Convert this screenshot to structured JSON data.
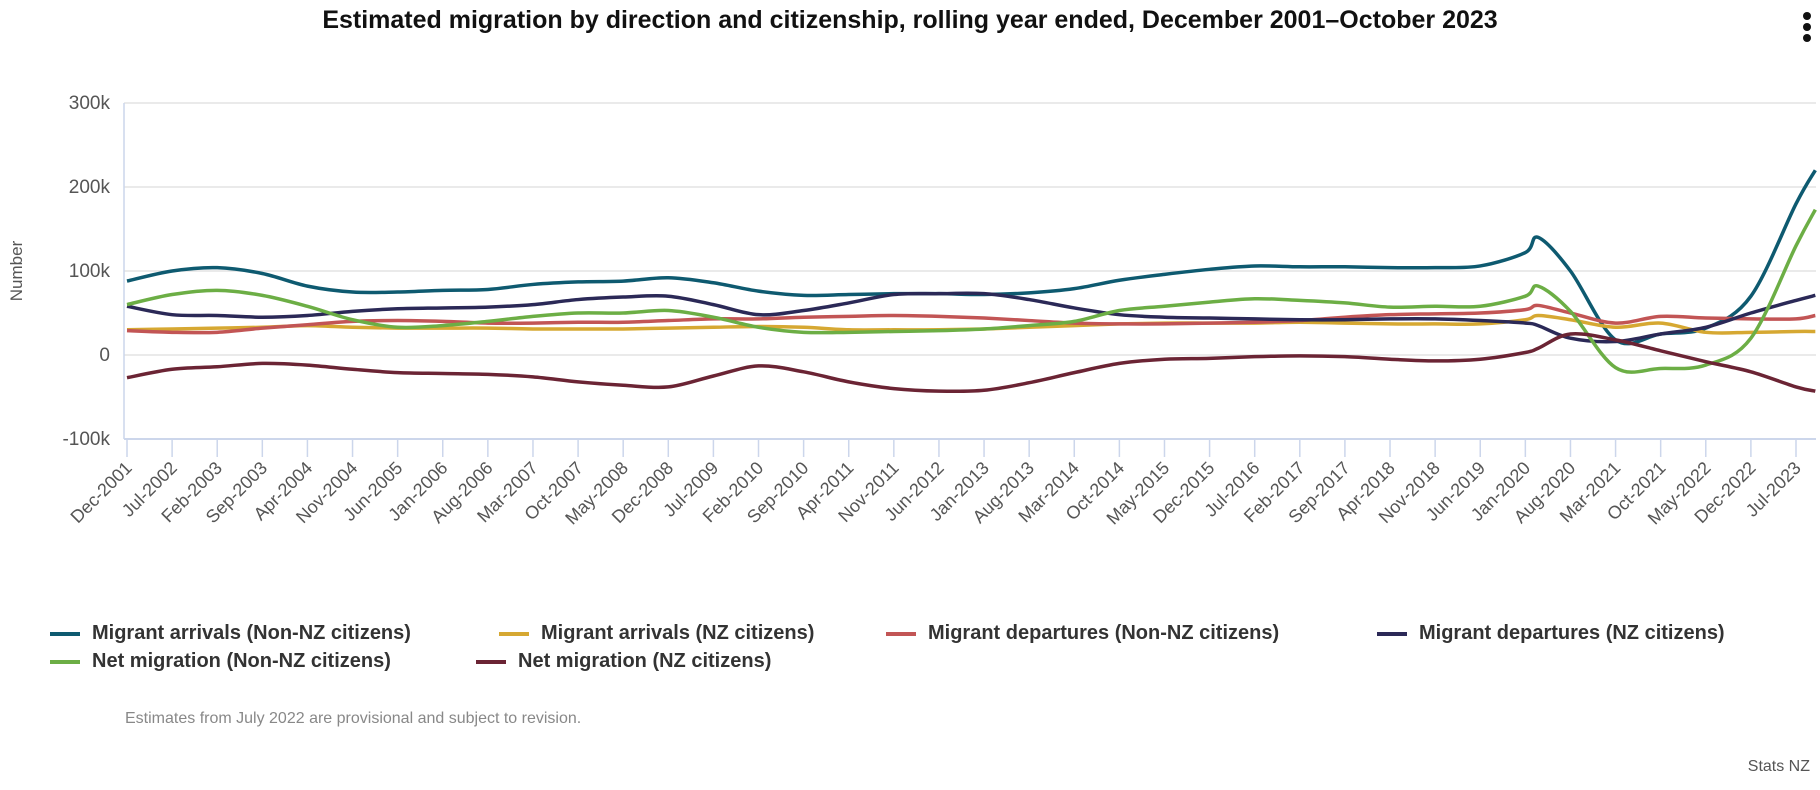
{
  "title": "Estimated migration by direction and citizenship, rolling year ended, December 2001–October 2023",
  "menu_icon": "more-vertical-icon",
  "note": "Estimates from July 2022 are provisional and subject to revision.",
  "credit": "Stats NZ",
  "chart_data": {
    "type": "line",
    "title": "Estimated migration by direction and citizenship, rolling year ended, December 2001–October 2023",
    "xlabel": "",
    "ylabel": "Number",
    "ylim": [
      -100000,
      300000
    ],
    "yticks": [
      {
        "v": 300000,
        "label": "300k"
      },
      {
        "v": 200000,
        "label": "200k"
      },
      {
        "v": 100000,
        "label": "100k"
      },
      {
        "v": 0,
        "label": "0"
      },
      {
        "v": -100000,
        "label": "-100k"
      }
    ],
    "x_start": "2001-12",
    "x_end": "2023-10",
    "xtick_labels": [
      "Dec-2001",
      "Jul-2002",
      "Feb-2003",
      "Sep-2003",
      "Apr-2004",
      "Nov-2004",
      "Jun-2005",
      "Jan-2006",
      "Aug-2006",
      "Mar-2007",
      "Oct-2007",
      "May-2008",
      "Dec-2008",
      "Jul-2009",
      "Feb-2010",
      "Sep-2010",
      "Apr-2011",
      "Nov-2011",
      "Jun-2012",
      "Jan-2013",
      "Aug-2013",
      "Mar-2014",
      "Oct-2014",
      "May-2015",
      "Dec-2015",
      "Jul-2016",
      "Feb-2017",
      "Sep-2017",
      "Apr-2018",
      "Nov-2018",
      "Jun-2019",
      "Jan-2020",
      "Aug-2020",
      "Mar-2021",
      "Oct-2021",
      "May-2022",
      "Dec-2022",
      "Jul-2023"
    ],
    "grid": true,
    "legend_position": "bottom",
    "x": [
      "2001-12",
      "2002-07",
      "2003-02",
      "2003-09",
      "2004-04",
      "2004-11",
      "2005-06",
      "2006-01",
      "2006-08",
      "2007-03",
      "2007-10",
      "2008-05",
      "2008-12",
      "2009-07",
      "2010-02",
      "2010-09",
      "2011-04",
      "2011-11",
      "2012-06",
      "2013-01",
      "2013-08",
      "2014-03",
      "2014-10",
      "2015-05",
      "2015-12",
      "2016-07",
      "2017-02",
      "2017-09",
      "2018-04",
      "2018-11",
      "2019-06",
      "2020-01",
      "2020-03",
      "2020-08",
      "2021-03",
      "2021-10",
      "2022-05",
      "2022-12",
      "2023-07",
      "2023-10"
    ],
    "series": [
      {
        "name": "Migrant arrivals (Non-NZ citizens)",
        "color": "#0e5a70",
        "values": [
          88000,
          100000,
          104000,
          97000,
          82000,
          75000,
          75000,
          77000,
          78000,
          84000,
          87000,
          88000,
          92000,
          86000,
          76000,
          71000,
          72000,
          73000,
          73000,
          72000,
          74000,
          79000,
          89000,
          96000,
          102000,
          106000,
          105000,
          105000,
          104000,
          104000,
          106000,
          122000,
          140000,
          100000,
          18000,
          25000,
          32000,
          70000,
          180000,
          220000
        ]
      },
      {
        "name": "Migrant arrivals (NZ citizens)",
        "color": "#d6a832",
        "values": [
          30000,
          31000,
          32000,
          33000,
          35000,
          33000,
          32000,
          32000,
          32000,
          31000,
          31000,
          31000,
          32000,
          33000,
          34000,
          33000,
          30000,
          30000,
          30000,
          31000,
          33000,
          35000,
          37000,
          38000,
          38000,
          38000,
          39000,
          38000,
          37000,
          37000,
          37000,
          42000,
          47000,
          42000,
          33000,
          38000,
          27000,
          27000,
          28000,
          28000
        ]
      },
      {
        "name": "Migrant departures (Non-NZ citizens)",
        "color": "#c25555",
        "values": [
          29000,
          27000,
          27000,
          32000,
          36000,
          40000,
          41000,
          40000,
          38000,
          38000,
          39000,
          39000,
          41000,
          43000,
          43000,
          45000,
          46000,
          47000,
          46000,
          44000,
          41000,
          38000,
          37000,
          37000,
          38000,
          39000,
          41000,
          45000,
          48000,
          49000,
          50000,
          54000,
          59000,
          50000,
          38000,
          46000,
          44000,
          43000,
          43000,
          47000
        ]
      },
      {
        "name": "Migrant departures (NZ citizens)",
        "color": "#2b2957",
        "values": [
          58000,
          48000,
          47000,
          45000,
          47000,
          52000,
          55000,
          56000,
          57000,
          60000,
          66000,
          69000,
          70000,
          60000,
          48000,
          53000,
          62000,
          72000,
          73000,
          73000,
          66000,
          56000,
          48000,
          45000,
          44000,
          43000,
          42000,
          42000,
          43000,
          43000,
          41000,
          38000,
          35000,
          20000,
          16000,
          25000,
          33000,
          50000,
          65000,
          71000
        ]
      },
      {
        "name": "Net migration (Non-NZ citizens)",
        "color": "#6cae45",
        "values": [
          60000,
          72000,
          77000,
          71000,
          58000,
          42000,
          33000,
          35000,
          40000,
          46000,
          50000,
          50000,
          53000,
          45000,
          33000,
          27000,
          27000,
          28000,
          29000,
          31000,
          35000,
          40000,
          53000,
          58000,
          63000,
          67000,
          65000,
          62000,
          57000,
          58000,
          58000,
          70000,
          82000,
          52000,
          -15000,
          -16000,
          -12000,
          20000,
          130000,
          173000
        ]
      },
      {
        "name": "Net migration (NZ citizens)",
        "color": "#6b2434",
        "values": [
          -27000,
          -17000,
          -14000,
          -10000,
          -12000,
          -17000,
          -21000,
          -22000,
          -23000,
          -26000,
          -32000,
          -36000,
          -38000,
          -25000,
          -13000,
          -20000,
          -32000,
          -40000,
          -43000,
          -42000,
          -33000,
          -21000,
          -10000,
          -5000,
          -4000,
          -2000,
          -1000,
          -2000,
          -5000,
          -7000,
          -5000,
          3000,
          8000,
          25000,
          18000,
          5000,
          -8000,
          -20000,
          -38000,
          -43000
        ]
      }
    ]
  }
}
